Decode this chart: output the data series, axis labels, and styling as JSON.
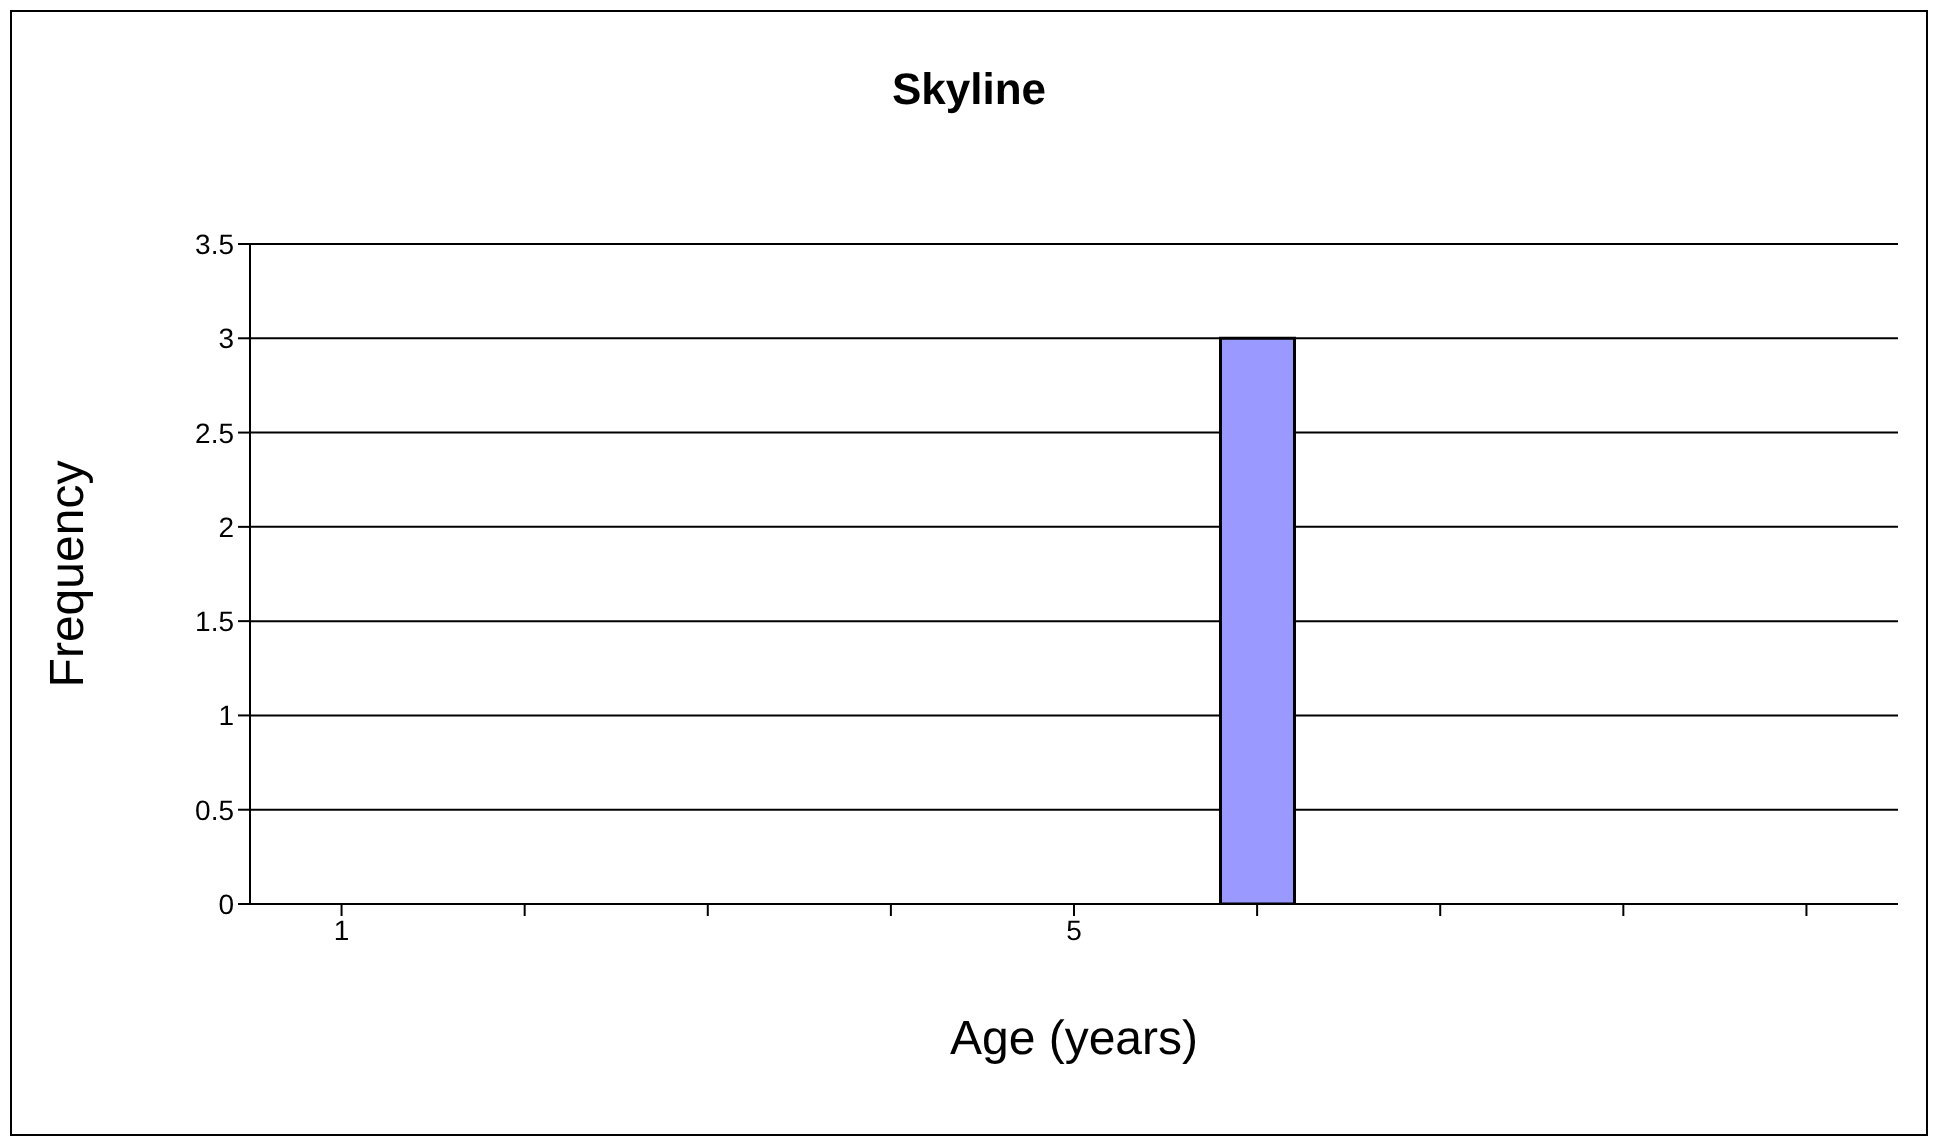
{
  "chart_data": {
    "type": "bar",
    "title": "Skyline",
    "xlabel": "Age (years)",
    "ylabel": "Frequency",
    "categories": [
      "1",
      null,
      null,
      null,
      "5",
      null,
      null,
      null,
      null
    ],
    "values": [
      0,
      0,
      0,
      0,
      0,
      3,
      0,
      0,
      0
    ],
    "color": "#9999ff",
    "ylim": [
      0,
      3.5
    ],
    "yticks": [
      0,
      0.5,
      1,
      1.5,
      2,
      2.5,
      3,
      3.5
    ],
    "grid": "y",
    "legend": false
  }
}
